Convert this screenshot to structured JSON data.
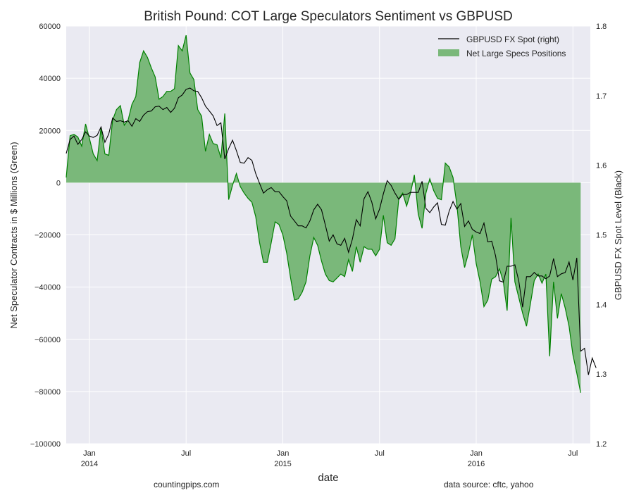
{
  "chart_data": {
    "type": "area",
    "title": "British Pound: COT Large Speculators Sentiment vs GBPUSD",
    "xlabel": "date",
    "ylabel_left": "Net Speculator Contracts in $ Millions (Green)",
    "ylabel_right": "GBPUSD FX Spot Level (Black)",
    "ylim_left": [
      -100000,
      60000
    ],
    "ylim_right": [
      1.2,
      1.8
    ],
    "yticks_left": [
      "60000",
      "40000",
      "20000",
      "0",
      "−20000",
      "−40000",
      "−60000",
      "−80000",
      "−100000"
    ],
    "yticks_right": [
      "1.8",
      "1.7",
      "1.6",
      "1.5",
      "1.4",
      "1.3",
      "1.2"
    ],
    "xlim": [
      2013.88,
      2016.59
    ],
    "xticks": [
      {
        "x": 2014.0,
        "label": "Jan",
        "sublabel": "2014"
      },
      {
        "x": 2014.5,
        "label": "Jul",
        "sublabel": ""
      },
      {
        "x": 2015.0,
        "label": "Jan",
        "sublabel": "2015"
      },
      {
        "x": 2015.5,
        "label": "Jul",
        "sublabel": ""
      },
      {
        "x": 2016.0,
        "label": "Jan",
        "sublabel": "2016"
      },
      {
        "x": 2016.5,
        "label": "Jul",
        "sublabel": ""
      }
    ],
    "grid": true,
    "legend_position": "top-right",
    "series": [
      {
        "name": "Net Large Specs Positions",
        "axis": "left",
        "style": "area",
        "color": "#008000",
        "fill": "#7ab87a",
        "points": [
          [
            2013.88,
            2000
          ],
          [
            2013.9,
            18000
          ],
          [
            2013.92,
            18500
          ],
          [
            2013.94,
            17500
          ],
          [
            2013.96,
            14000
          ],
          [
            2013.98,
            22500
          ],
          [
            2014.0,
            17000
          ],
          [
            2014.02,
            11000
          ],
          [
            2014.04,
            8500
          ],
          [
            2014.06,
            21000
          ],
          [
            2014.08,
            11000
          ],
          [
            2014.1,
            10500
          ],
          [
            2014.12,
            24000
          ],
          [
            2014.14,
            28000
          ],
          [
            2014.16,
            29500
          ],
          [
            2014.18,
            22000
          ],
          [
            2014.2,
            24000
          ],
          [
            2014.22,
            30000
          ],
          [
            2014.24,
            33000
          ],
          [
            2014.26,
            46000
          ],
          [
            2014.28,
            50500
          ],
          [
            2014.3,
            48000
          ],
          [
            2014.32,
            44000
          ],
          [
            2014.34,
            40500
          ],
          [
            2014.36,
            32000
          ],
          [
            2014.38,
            33000
          ],
          [
            2014.4,
            35000
          ],
          [
            2014.42,
            35000
          ],
          [
            2014.44,
            36000
          ],
          [
            2014.46,
            52500
          ],
          [
            2014.48,
            50500
          ],
          [
            2014.5,
            56500
          ],
          [
            2014.52,
            42000
          ],
          [
            2014.54,
            39500
          ],
          [
            2014.56,
            28000
          ],
          [
            2014.58,
            25500
          ],
          [
            2014.6,
            12000
          ],
          [
            2014.62,
            18500
          ],
          [
            2014.64,
            15000
          ],
          [
            2014.66,
            14500
          ],
          [
            2014.68,
            9500
          ],
          [
            2014.7,
            26500
          ],
          [
            2014.72,
            -6500
          ],
          [
            2014.74,
            -1000
          ],
          [
            2014.76,
            3500
          ],
          [
            2014.78,
            -1500
          ],
          [
            2014.8,
            -4000
          ],
          [
            2014.82,
            -6000
          ],
          [
            2014.84,
            -7500
          ],
          [
            2014.86,
            -13000
          ],
          [
            2014.88,
            -23000
          ],
          [
            2014.9,
            -30500
          ],
          [
            2014.92,
            -30500
          ],
          [
            2014.94,
            -23000
          ],
          [
            2014.96,
            -15000
          ],
          [
            2014.98,
            -16000
          ],
          [
            2015.0,
            -20000
          ],
          [
            2015.02,
            -27000
          ],
          [
            2015.04,
            -36500
          ],
          [
            2015.06,
            -45000
          ],
          [
            2015.08,
            -44500
          ],
          [
            2015.1,
            -42000
          ],
          [
            2015.12,
            -38000
          ],
          [
            2015.14,
            -28000
          ],
          [
            2015.16,
            -21000
          ],
          [
            2015.18,
            -24000
          ],
          [
            2015.2,
            -30000
          ],
          [
            2015.22,
            -35000
          ],
          [
            2015.24,
            -37500
          ],
          [
            2015.26,
            -38000
          ],
          [
            2015.28,
            -36500
          ],
          [
            2015.3,
            -35000
          ],
          [
            2015.32,
            -36000
          ],
          [
            2015.34,
            -29500
          ],
          [
            2015.36,
            -34000
          ],
          [
            2015.38,
            -24500
          ],
          [
            2015.4,
            -30500
          ],
          [
            2015.42,
            -24500
          ],
          [
            2015.44,
            -25500
          ],
          [
            2015.46,
            -25500
          ],
          [
            2015.48,
            -28000
          ],
          [
            2015.5,
            -25500
          ],
          [
            2015.52,
            -12500
          ],
          [
            2015.54,
            -23000
          ],
          [
            2015.56,
            -24000
          ],
          [
            2015.58,
            -21500
          ],
          [
            2015.6,
            -6000
          ],
          [
            2015.62,
            -4000
          ],
          [
            2015.64,
            -9000
          ],
          [
            2015.66,
            -4000
          ],
          [
            2015.68,
            3000
          ],
          [
            2015.7,
            -12000
          ],
          [
            2015.72,
            -17500
          ],
          [
            2015.74,
            -4000
          ],
          [
            2015.76,
            1500
          ],
          [
            2015.78,
            -3000
          ],
          [
            2015.8,
            -6000
          ],
          [
            2015.82,
            -6500
          ],
          [
            2015.84,
            7500
          ],
          [
            2015.86,
            6000
          ],
          [
            2015.88,
            2000
          ],
          [
            2015.9,
            -8500
          ],
          [
            2015.92,
            -24500
          ],
          [
            2015.94,
            -32500
          ],
          [
            2015.96,
            -27000
          ],
          [
            2015.98,
            -20000
          ],
          [
            2016.0,
            -31000
          ],
          [
            2016.02,
            -38000
          ],
          [
            2016.04,
            -47500
          ],
          [
            2016.06,
            -45000
          ],
          [
            2016.08,
            -37000
          ],
          [
            2016.1,
            -36000
          ],
          [
            2016.12,
            -33000
          ],
          [
            2016.14,
            -38000
          ],
          [
            2016.16,
            -49000
          ],
          [
            2016.18,
            -13500
          ],
          [
            2016.2,
            -38000
          ],
          [
            2016.22,
            -44000
          ],
          [
            2016.24,
            -50000
          ],
          [
            2016.26,
            -55000
          ],
          [
            2016.28,
            -46500
          ],
          [
            2016.3,
            -37500
          ],
          [
            2016.32,
            -35000
          ],
          [
            2016.34,
            -38500
          ],
          [
            2016.36,
            -35000
          ],
          [
            2016.38,
            -66500
          ],
          [
            2016.4,
            -38000
          ],
          [
            2016.42,
            -52000
          ],
          [
            2016.44,
            -42500
          ],
          [
            2016.46,
            -48000
          ],
          [
            2016.48,
            -55000
          ],
          [
            2016.5,
            -66000
          ],
          [
            2016.52,
            -73000
          ],
          [
            2016.54,
            -80500
          ]
        ]
      },
      {
        "name": "GBPUSD FX Spot (right)",
        "axis": "right",
        "style": "line",
        "color": "#000000",
        "points": [
          [
            2013.88,
            1.617
          ],
          [
            2013.9,
            1.637
          ],
          [
            2013.92,
            1.642
          ],
          [
            2013.94,
            1.63
          ],
          [
            2013.96,
            1.637
          ],
          [
            2013.98,
            1.648
          ],
          [
            2014.0,
            1.642
          ],
          [
            2014.02,
            1.64
          ],
          [
            2014.04,
            1.643
          ],
          [
            2014.06,
            1.655
          ],
          [
            2014.08,
            1.633
          ],
          [
            2014.1,
            1.645
          ],
          [
            2014.12,
            1.668
          ],
          [
            2014.14,
            1.663
          ],
          [
            2014.16,
            1.664
          ],
          [
            2014.18,
            1.662
          ],
          [
            2014.2,
            1.664
          ],
          [
            2014.22,
            1.656
          ],
          [
            2014.24,
            1.667
          ],
          [
            2014.26,
            1.663
          ],
          [
            2014.28,
            1.672
          ],
          [
            2014.3,
            1.677
          ],
          [
            2014.32,
            1.678
          ],
          [
            2014.34,
            1.684
          ],
          [
            2014.36,
            1.685
          ],
          [
            2014.38,
            1.68
          ],
          [
            2014.4,
            1.683
          ],
          [
            2014.42,
            1.676
          ],
          [
            2014.44,
            1.682
          ],
          [
            2014.46,
            1.697
          ],
          [
            2014.48,
            1.701
          ],
          [
            2014.5,
            1.709
          ],
          [
            2014.52,
            1.711
          ],
          [
            2014.54,
            1.707
          ],
          [
            2014.56,
            1.706
          ],
          [
            2014.58,
            1.697
          ],
          [
            2014.6,
            1.685
          ],
          [
            2014.62,
            1.678
          ],
          [
            2014.64,
            1.671
          ],
          [
            2014.66,
            1.657
          ],
          [
            2014.68,
            1.661
          ],
          [
            2014.7,
            1.609
          ],
          [
            2014.72,
            1.624
          ],
          [
            2014.74,
            1.636
          ],
          [
            2014.76,
            1.621
          ],
          [
            2014.78,
            1.604
          ],
          [
            2014.8,
            1.603
          ],
          [
            2014.82,
            1.611
          ],
          [
            2014.84,
            1.607
          ],
          [
            2014.86,
            1.588
          ],
          [
            2014.88,
            1.574
          ],
          [
            2014.9,
            1.56
          ],
          [
            2014.92,
            1.565
          ],
          [
            2014.94,
            1.568
          ],
          [
            2014.96,
            1.562
          ],
          [
            2014.98,
            1.562
          ],
          [
            2015.0,
            1.555
          ],
          [
            2015.02,
            1.549
          ],
          [
            2015.04,
            1.527
          ],
          [
            2015.06,
            1.52
          ],
          [
            2015.08,
            1.513
          ],
          [
            2015.1,
            1.513
          ],
          [
            2015.12,
            1.51
          ],
          [
            2015.14,
            1.52
          ],
          [
            2015.16,
            1.536
          ],
          [
            2015.18,
            1.544
          ],
          [
            2015.2,
            1.536
          ],
          [
            2015.22,
            1.514
          ],
          [
            2015.24,
            1.491
          ],
          [
            2015.26,
            1.5
          ],
          [
            2015.28,
            1.487
          ],
          [
            2015.3,
            1.485
          ],
          [
            2015.32,
            1.495
          ],
          [
            2015.34,
            1.475
          ],
          [
            2015.36,
            1.494
          ],
          [
            2015.38,
            1.522
          ],
          [
            2015.4,
            1.513
          ],
          [
            2015.42,
            1.552
          ],
          [
            2015.44,
            1.562
          ],
          [
            2015.46,
            1.547
          ],
          [
            2015.48,
            1.523
          ],
          [
            2015.5,
            1.537
          ],
          [
            2015.52,
            1.559
          ],
          [
            2015.54,
            1.578
          ],
          [
            2015.56,
            1.571
          ],
          [
            2015.58,
            1.56
          ],
          [
            2015.6,
            1.551
          ],
          [
            2015.62,
            1.558
          ],
          [
            2015.64,
            1.558
          ],
          [
            2015.66,
            1.561
          ],
          [
            2015.68,
            1.561
          ],
          [
            2015.7,
            1.561
          ],
          [
            2015.72,
            1.577
          ],
          [
            2015.74,
            1.538
          ],
          [
            2015.76,
            1.532
          ],
          [
            2015.78,
            1.54
          ],
          [
            2015.8,
            1.546
          ],
          [
            2015.82,
            1.515
          ],
          [
            2015.84,
            1.514
          ],
          [
            2015.86,
            1.534
          ],
          [
            2015.88,
            1.548
          ],
          [
            2015.9,
            1.537
          ],
          [
            2015.92,
            1.545
          ],
          [
            2015.94,
            1.512
          ],
          [
            2015.96,
            1.52
          ],
          [
            2015.98,
            1.508
          ],
          [
            2016.0,
            1.504
          ],
          [
            2016.02,
            1.502
          ],
          [
            2016.04,
            1.517
          ],
          [
            2016.06,
            1.49
          ],
          [
            2016.08,
            1.491
          ],
          [
            2016.1,
            1.47
          ],
          [
            2016.12,
            1.434
          ],
          [
            2016.14,
            1.432
          ],
          [
            2016.16,
            1.455
          ],
          [
            2016.18,
            1.455
          ],
          [
            2016.2,
            1.457
          ],
          [
            2016.22,
            1.434
          ],
          [
            2016.24,
            1.396
          ],
          [
            2016.26,
            1.44
          ],
          [
            2016.28,
            1.44
          ],
          [
            2016.3,
            1.446
          ],
          [
            2016.32,
            1.441
          ],
          [
            2016.34,
            1.441
          ],
          [
            2016.36,
            1.437
          ],
          [
            2016.38,
            1.441
          ],
          [
            2016.4,
            1.466
          ],
          [
            2016.42,
            1.44
          ],
          [
            2016.44,
            1.444
          ],
          [
            2016.46,
            1.446
          ],
          [
            2016.48,
            1.461
          ],
          [
            2016.5,
            1.435
          ],
          [
            2016.52,
            1.467
          ],
          [
            2016.54,
            1.333
          ],
          [
            2016.56,
            1.337
          ],
          [
            2016.58,
            1.299
          ],
          [
            2016.6,
            1.323
          ],
          [
            2016.62,
            1.309
          ]
        ]
      }
    ],
    "annotations": []
  },
  "footer": {
    "left": "countingpips.com",
    "right": "data source: cftc, yahoo"
  }
}
